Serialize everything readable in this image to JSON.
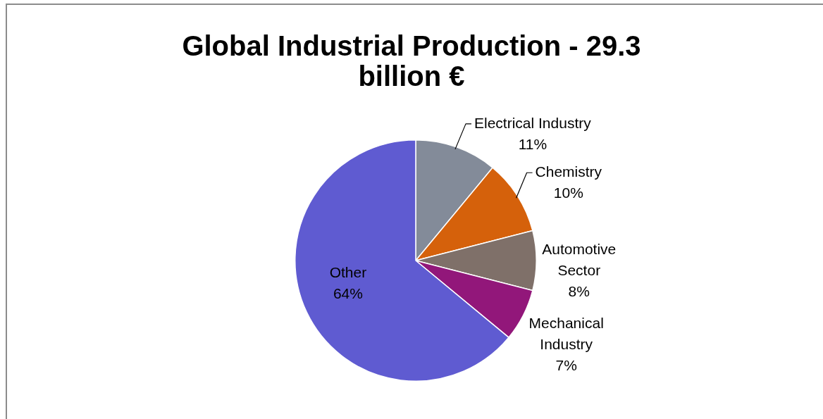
{
  "chart_data": {
    "type": "pie",
    "title": "Global Industrial Production - 29.3 billion €",
    "categories": [
      "Electrical Industry",
      "Chemistry",
      "Automotive Sector",
      "Mechanical Industry",
      "Other"
    ],
    "values": [
      11,
      10,
      8,
      7,
      64
    ],
    "value_labels": [
      "11%",
      "10%",
      "8%",
      "7%",
      "64%"
    ],
    "colors": [
      "#838b99",
      "#d5610b",
      "#7f7069",
      "#92177a",
      "#5f5bd1"
    ],
    "legend": false
  }
}
